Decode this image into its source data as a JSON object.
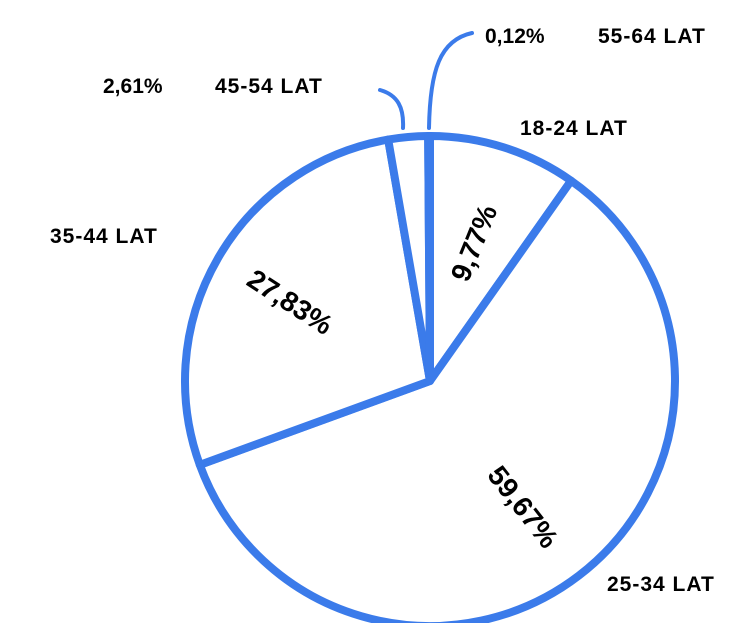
{
  "chart_data": {
    "type": "pie",
    "slices": [
      {
        "category": "18-24 LAT",
        "value": 9.77,
        "label": "9,77%"
      },
      {
        "category": "25-34 LAT",
        "value": 59.67,
        "label": "59,67%"
      },
      {
        "category": "35-44 LAT",
        "value": 27.83,
        "label": "27,83%"
      },
      {
        "category": "45-54 LAT",
        "value": 2.61,
        "label": "2,61%"
      },
      {
        "category": "55-64 LAT",
        "value": 0.12,
        "label": "0,12%"
      }
    ],
    "start_angle_deg": 0,
    "direction": "clockwise",
    "stroke_color": "#3B7BEA",
    "fill_color": "#FFFFFF",
    "label_color": "#000000"
  }
}
